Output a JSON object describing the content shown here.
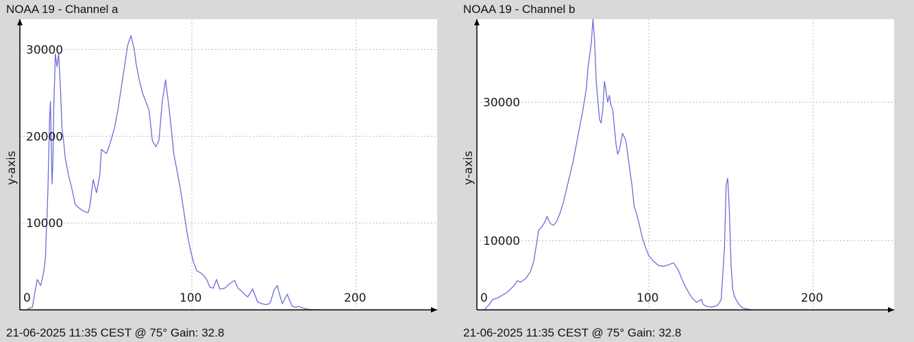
{
  "colors": {
    "background": "#d9d9d9",
    "plot_area": "#ffffff",
    "series_line": "#6b6bd8",
    "grid": "#b4b4b4",
    "axis": "#000000"
  },
  "panels": [
    {
      "title": "NOAA 19 - Channel a",
      "footer": "21-06-2025 11:35 CEST @ 75° Gain: 32.8"
    },
    {
      "title": "NOAA 19 - Channel b",
      "footer": "21-06-2025 11:35 CEST @ 75° Gain: 32.8"
    }
  ],
  "chart_data": [
    {
      "type": "line",
      "title": "NOAA 19 - Channel a",
      "xlabel": "",
      "ylabel": "y-axis",
      "xlim": [
        0,
        255
      ],
      "ylim": [
        0,
        33500
      ],
      "grid": true,
      "x_ticks": [
        0,
        100,
        200
      ],
      "y_ticks": [
        10000,
        20000,
        30000
      ],
      "series": [
        {
          "x": [
            0,
            3,
            5,
            6,
            8,
            9,
            10,
            11,
            11.5,
            12,
            12.5,
            13,
            13.5,
            14,
            15,
            15.5,
            16,
            17,
            18,
            19,
            20,
            21,
            22,
            23,
            25,
            27,
            29,
            31,
            33,
            35,
            37,
            38,
            40,
            42,
            44,
            45,
            48,
            50,
            53,
            55,
            57,
            59,
            61,
            63,
            65,
            66,
            68,
            70,
            72,
            74,
            76,
            78,
            80,
            82,
            84,
            86,
            88,
            89,
            91,
            93,
            95,
            97,
            99,
            101,
            103,
            105,
            107,
            109,
            111,
            113,
            115,
            117,
            120,
            123,
            126,
            128,
            130,
            132,
            134,
            137,
            140,
            143,
            145,
            147,
            148,
            150,
            152,
            153,
            155,
            158,
            161,
            163,
            165,
            166,
            168,
            170,
            171,
            173,
            176,
            178,
            180
          ],
          "y": [
            100,
            300,
            2500,
            3500,
            2800,
            3500,
            4500,
            6000,
            9000,
            11000,
            14000,
            18000,
            22000,
            24000,
            14500,
            17000,
            23000,
            29500,
            28000,
            29500,
            26000,
            21000,
            19500,
            17500,
            15500,
            14000,
            12200,
            11800,
            11500,
            11300,
            11200,
            12000,
            15000,
            13500,
            15500,
            18500,
            18000,
            19000,
            21000,
            23000,
            25500,
            28000,
            30500,
            31600,
            30000,
            28500,
            26500,
            25000,
            24000,
            23000,
            19500,
            18800,
            19500,
            24000,
            26500,
            23500,
            20000,
            18000,
            16000,
            14000,
            11500,
            9000,
            7000,
            5500,
            4500,
            4300,
            4000,
            3500,
            2600,
            2500,
            3500,
            2400,
            2500,
            3000,
            3400,
            2500,
            2200,
            1800,
            1500,
            2400,
            900,
            700,
            600,
            700,
            1000,
            2300,
            2800,
            2000,
            700,
            1800,
            400,
            300,
            400,
            300,
            200,
            100,
            50,
            20,
            10,
            0,
            0
          ]
        }
      ]
    },
    {
      "type": "line",
      "title": "NOAA 19 - Channel b",
      "xlabel": "",
      "ylabel": "y-axis",
      "xlim": [
        0,
        255
      ],
      "ylim": [
        0,
        42000
      ],
      "grid": true,
      "x_ticks": [
        0,
        100,
        200
      ],
      "y_ticks": [
        10000,
        30000
      ],
      "series": [
        {
          "x": [
            0,
            3,
            5,
            8,
            10,
            13,
            15,
            18,
            20,
            22,
            25,
            28,
            30,
            32,
            33,
            35,
            37,
            38,
            40,
            42,
            44,
            46,
            48,
            50,
            52,
            54,
            56,
            58,
            60,
            62,
            63,
            65,
            66,
            67,
            68,
            70,
            71,
            72,
            73,
            75,
            76,
            77,
            78,
            79,
            80,
            81,
            82,
            84,
            86,
            88,
            90,
            91,
            93,
            95,
            96,
            98,
            100,
            103,
            106,
            109,
            112,
            115,
            118,
            120,
            123,
            126,
            129,
            132,
            133,
            135,
            138,
            140,
            142,
            144,
            146,
            147,
            148,
            149,
            150,
            151,
            152,
            153,
            155,
            157,
            160,
            163,
            165
          ],
          "y": [
            0,
            800,
            1500,
            1700,
            2000,
            2400,
            2800,
            3500,
            4200,
            4000,
            4500,
            5500,
            7000,
            10000,
            11500,
            12000,
            12800,
            13500,
            12500,
            12200,
            12800,
            14000,
            15500,
            17500,
            19500,
            21500,
            24000,
            26500,
            29000,
            32000,
            35000,
            38500,
            42000,
            39000,
            33000,
            27500,
            27000,
            29000,
            33000,
            30000,
            31000,
            29500,
            29000,
            26500,
            24000,
            22500,
            23000,
            25500,
            24500,
            21000,
            17500,
            15000,
            13500,
            11500,
            10500,
            9000,
            7800,
            7000,
            6400,
            6300,
            6500,
            6800,
            5700,
            4500,
            3000,
            1800,
            1100,
            1500,
            800,
            500,
            400,
            500,
            700,
            1500,
            9000,
            18000,
            19000,
            14000,
            6500,
            3000,
            2000,
            1500,
            700,
            300,
            100,
            0,
            0
          ]
        }
      ]
    }
  ]
}
